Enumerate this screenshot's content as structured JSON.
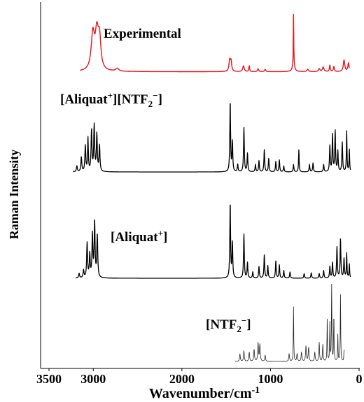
{
  "chart_data": {
    "type": "line",
    "xlabel": "Wavenumber/cm",
    "xlabel_sup": "-1",
    "ylabel": "Raman Intensity",
    "xlim": [
      3500,
      0
    ],
    "x_reversed": true,
    "xticks": [
      {
        "value": 3500,
        "label": "3500"
      },
      {
        "value": 3000,
        "label": "3000"
      },
      {
        "value": 2000,
        "label": "2000"
      },
      {
        "value": 1000,
        "label": "1000"
      },
      {
        "value": 0,
        "label": "0"
      }
    ],
    "y_tick_labels_shown": false,
    "grid": false,
    "series": [
      {
        "name": "Experimental",
        "label_parts": [
          {
            "t": "Experimental"
          }
        ],
        "color": "#e8141c",
        "stroke_width": 1.4,
        "peak_width": 8,
        "baseline": 0.03,
        "peaks": [
          [
            3005,
            0.62,
            22
          ],
          [
            2960,
            0.62,
            22
          ],
          [
            2930,
            0.5,
            18
          ],
          [
            2730,
            0.05,
            20
          ],
          [
            1460,
            0.2,
            10
          ],
          [
            1445,
            0.16,
            8
          ],
          [
            1305,
            0.1,
            10
          ],
          [
            1240,
            0.1,
            5
          ],
          [
            1140,
            0.05,
            8
          ],
          [
            1060,
            0.04,
            8
          ],
          [
            740,
            0.9,
            3
          ],
          [
            740,
            0.1,
            15
          ],
          [
            580,
            0.04,
            10
          ],
          [
            450,
            0.05,
            10
          ],
          [
            405,
            0.08,
            10
          ],
          [
            330,
            0.11,
            6
          ],
          [
            285,
            0.09,
            6
          ],
          [
            170,
            0.2,
            10
          ],
          [
            120,
            0.15,
            8
          ]
        ]
      },
      {
        "name": "[Aliquat+][NTF2-]",
        "label_parts": [
          {
            "t": "[Aliquat"
          },
          {
            "t": "+",
            "s": "sup"
          },
          {
            "t": "][NTF"
          },
          {
            "t": "2",
            "s": "sub"
          },
          {
            "t": "−",
            "s": "sup"
          },
          {
            "t": "]"
          }
        ],
        "color": "#000000",
        "stroke_width": 1.3,
        "peak_width": 5,
        "baseline": 0.0,
        "peaks": [
          [
            3185,
            0.08,
            6
          ],
          [
            3135,
            0.2,
            6
          ],
          [
            3090,
            0.35,
            6
          ],
          [
            3060,
            0.45,
            5
          ],
          [
            3020,
            0.55,
            6
          ],
          [
            2990,
            0.62,
            6
          ],
          [
            2960,
            0.5,
            6
          ],
          [
            2930,
            0.35,
            6
          ],
          [
            1455,
            0.95,
            5
          ],
          [
            1430,
            0.4,
            5
          ],
          [
            1370,
            0.1,
            5
          ],
          [
            1300,
            0.6,
            5
          ],
          [
            1260,
            0.25,
            5
          ],
          [
            1170,
            0.1,
            5
          ],
          [
            1130,
            0.15,
            5
          ],
          [
            1070,
            0.3,
            5
          ],
          [
            1020,
            0.18,
            5
          ],
          [
            940,
            0.14,
            5
          ],
          [
            900,
            0.16,
            5
          ],
          [
            850,
            0.08,
            5
          ],
          [
            740,
            0.1,
            5
          ],
          [
            680,
            0.3,
            4
          ],
          [
            560,
            0.1,
            5
          ],
          [
            520,
            0.12,
            5
          ],
          [
            400,
            0.1,
            5
          ],
          [
            330,
            0.35,
            5
          ],
          [
            300,
            0.5,
            5
          ],
          [
            270,
            0.55,
            5
          ],
          [
            240,
            0.28,
            5
          ],
          [
            190,
            0.4,
            5
          ],
          [
            140,
            0.55,
            4
          ],
          [
            110,
            0.3,
            4
          ]
        ]
      },
      {
        "name": "[Aliquat+]",
        "label_parts": [
          {
            "t": "[Aliquat"
          },
          {
            "t": "+",
            "s": "sup"
          },
          {
            "t": "]"
          }
        ],
        "color": "#000000",
        "stroke_width": 1.3,
        "peak_width": 5,
        "baseline": 0.0,
        "peaks": [
          [
            3160,
            0.06,
            6
          ],
          [
            3110,
            0.1,
            6
          ],
          [
            3070,
            0.45,
            6
          ],
          [
            3040,
            0.3,
            6
          ],
          [
            3010,
            0.55,
            6
          ],
          [
            2985,
            0.72,
            6
          ],
          [
            2955,
            0.55,
            6
          ],
          [
            1455,
            0.97,
            5
          ],
          [
            1430,
            0.45,
            5
          ],
          [
            1300,
            0.57,
            5
          ],
          [
            1260,
            0.2,
            5
          ],
          [
            1200,
            0.08,
            5
          ],
          [
            1130,
            0.15,
            5
          ],
          [
            1070,
            0.3,
            5
          ],
          [
            1030,
            0.16,
            5
          ],
          [
            940,
            0.22,
            5
          ],
          [
            900,
            0.17,
            5
          ],
          [
            850,
            0.1,
            5
          ],
          [
            780,
            0.08,
            5
          ],
          [
            620,
            0.06,
            5
          ],
          [
            540,
            0.07,
            5
          ],
          [
            450,
            0.06,
            5
          ],
          [
            400,
            0.1,
            5
          ],
          [
            330,
            0.15,
            5
          ],
          [
            300,
            0.2,
            5
          ],
          [
            250,
            0.4,
            5
          ],
          [
            210,
            0.5,
            5
          ],
          [
            170,
            0.25,
            5
          ],
          [
            140,
            0.32,
            4
          ],
          [
            110,
            0.18,
            4
          ]
        ]
      },
      {
        "name": "[NTF2-]",
        "label_parts": [
          {
            "t": "[NTF"
          },
          {
            "t": "2",
            "s": "sub"
          },
          {
            "t": "−",
            "s": "sup"
          },
          {
            "t": "]"
          }
        ],
        "color": "#222222",
        "stroke_width": 0.8,
        "peak_width": 4,
        "baseline": 0.0,
        "peaks": [
          [
            1345,
            0.1,
            5
          ],
          [
            1300,
            0.14,
            5
          ],
          [
            1240,
            0.12,
            5
          ],
          [
            1185,
            0.16,
            5
          ],
          [
            1140,
            0.24,
            5
          ],
          [
            1120,
            0.22,
            5
          ],
          [
            1060,
            0.08,
            5
          ],
          [
            790,
            0.1,
            5
          ],
          [
            740,
            0.72,
            3
          ],
          [
            700,
            0.1,
            5
          ],
          [
            650,
            0.12,
            5
          ],
          [
            600,
            0.2,
            5
          ],
          [
            570,
            0.18,
            5
          ],
          [
            500,
            0.12,
            5
          ],
          [
            450,
            0.25,
            4
          ],
          [
            410,
            0.22,
            4
          ],
          [
            360,
            0.55,
            3
          ],
          [
            330,
            0.5,
            3
          ],
          [
            310,
            1.0,
            3
          ],
          [
            285,
            0.6,
            3
          ],
          [
            240,
            0.35,
            3
          ],
          [
            210,
            0.88,
            3
          ],
          [
            170,
            0.15,
            3
          ]
        ]
      }
    ]
  }
}
